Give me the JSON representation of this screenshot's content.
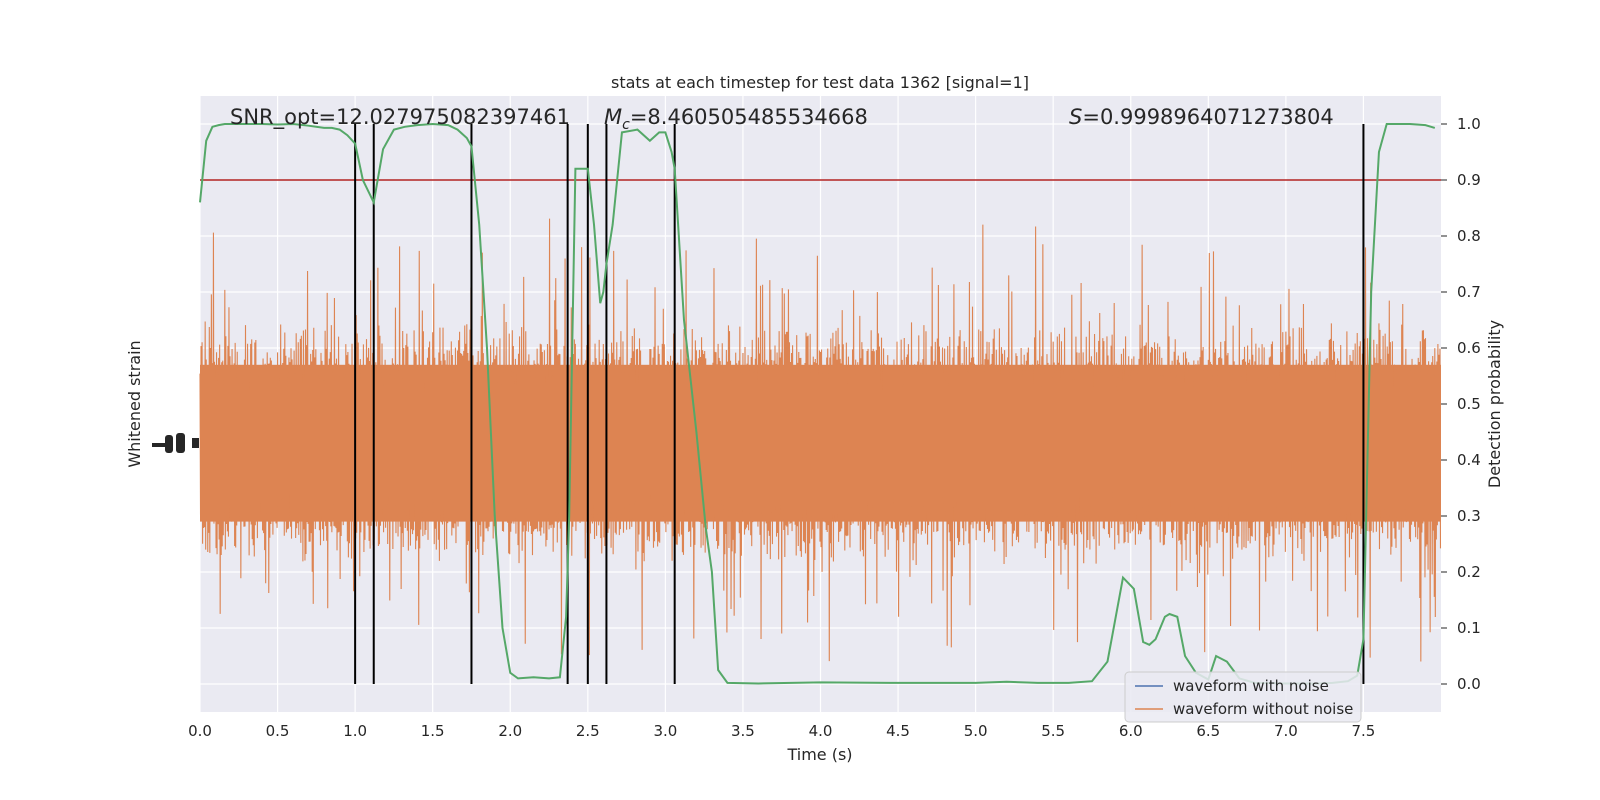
{
  "chart_data": {
    "type": "line",
    "title": "stats at each timestep for test data 1362 [signal=1]",
    "xlabel": "Time (s)",
    "ylabel_left": "Whitened strain",
    "ylabel_right": "Detection probability",
    "xlim": [
      0.0,
      8.0
    ],
    "ylim_right": [
      -0.05,
      1.05
    ],
    "x_ticks": [
      "0.0",
      "0.5",
      "1.0",
      "1.5",
      "2.0",
      "2.5",
      "3.0",
      "3.5",
      "4.0",
      "4.5",
      "5.0",
      "5.5",
      "6.0",
      "6.5",
      "7.0",
      "7.5"
    ],
    "x_tick_values": [
      0.0,
      0.5,
      1.0,
      1.5,
      2.0,
      2.5,
      3.0,
      3.5,
      4.0,
      4.5,
      5.0,
      5.5,
      6.0,
      6.5,
      7.0,
      7.5
    ],
    "y_right_ticks": [
      "0.0",
      "0.1",
      "0.2",
      "0.3",
      "0.4",
      "0.5",
      "0.6",
      "0.7",
      "0.8",
      "0.9",
      "1.0"
    ],
    "y_right_tick_values": [
      0.0,
      0.1,
      0.2,
      0.3,
      0.4,
      0.5,
      0.6,
      0.7,
      0.8,
      0.9,
      1.0
    ],
    "grid": true,
    "legend": {
      "placement": "lower-right",
      "entries": [
        {
          "label": "waveform with noise",
          "color": "#4c72b0"
        },
        {
          "label": "waveform without noise",
          "color": "#dd8452"
        }
      ]
    },
    "annotations": {
      "snr_text": "SNR_opt=12.027975082397461",
      "mc_symbol": "M",
      "mc_subscript": "c",
      "mc_value": "=8.460505485534668",
      "s_symbol": "S",
      "s_value": "=0.9998964071273804"
    },
    "threshold": {
      "value": 0.9,
      "color": "#b22222"
    },
    "vertical_lines": [
      1.0,
      1.12,
      1.75,
      2.37,
      2.5,
      2.62,
      3.06,
      7.5
    ],
    "noise_band": {
      "color": "#dd8452",
      "center": 0.43,
      "core_half_width": 0.14,
      "max_half_width": 0.43
    },
    "series": [
      {
        "name": "Detection probability",
        "color": "#55a868",
        "x": [
          0.0,
          0.04,
          0.08,
          0.12,
          0.16,
          0.2,
          0.3,
          0.4,
          0.5,
          0.6,
          0.7,
          0.8,
          0.85,
          0.9,
          0.95,
          1.0,
          1.05,
          1.12,
          1.18,
          1.25,
          1.32,
          1.4,
          1.5,
          1.6,
          1.66,
          1.72,
          1.75,
          1.8,
          1.85,
          1.9,
          1.95,
          2.0,
          2.05,
          2.15,
          2.25,
          2.32,
          2.36,
          2.38,
          2.42,
          2.5,
          2.54,
          2.58,
          2.6,
          2.62,
          2.66,
          2.72,
          2.82,
          2.9,
          2.96,
          3.0,
          3.04,
          3.06,
          3.12,
          3.2,
          3.26,
          3.3,
          3.34,
          3.4,
          3.6,
          4.0,
          4.5,
          5.0,
          5.2,
          5.4,
          5.6,
          5.75,
          5.85,
          5.95,
          6.02,
          6.08,
          6.12,
          6.16,
          6.22,
          6.25,
          6.3,
          6.35,
          6.42,
          6.5,
          6.55,
          6.62,
          6.7,
          6.8,
          7.0,
          7.2,
          7.3,
          7.4,
          7.46,
          7.5,
          7.55,
          7.6,
          7.65,
          7.7,
          7.8,
          7.9,
          7.96
        ],
        "y": [
          0.86,
          0.97,
          0.995,
          0.998,
          1.0,
          1.0,
          1.0,
          1.0,
          0.999,
          1.0,
          0.997,
          0.993,
          0.993,
          0.99,
          0.98,
          0.965,
          0.9,
          0.86,
          0.955,
          0.99,
          0.995,
          0.998,
          1.0,
          0.998,
          0.99,
          0.975,
          0.96,
          0.82,
          0.6,
          0.3,
          0.1,
          0.02,
          0.01,
          0.012,
          0.01,
          0.012,
          0.12,
          0.3,
          0.92,
          0.92,
          0.82,
          0.68,
          0.7,
          0.75,
          0.82,
          0.985,
          0.99,
          0.97,
          0.985,
          0.985,
          0.95,
          0.92,
          0.65,
          0.45,
          0.28,
          0.2,
          0.025,
          0.002,
          0.001,
          0.003,
          0.002,
          0.002,
          0.004,
          0.002,
          0.002,
          0.005,
          0.04,
          0.19,
          0.17,
          0.075,
          0.07,
          0.08,
          0.12,
          0.125,
          0.12,
          0.05,
          0.02,
          0.008,
          0.05,
          0.04,
          0.01,
          0.002,
          0.001,
          0.001,
          0.002,
          0.005,
          0.015,
          0.08,
          0.7,
          0.95,
          1.0,
          1.0,
          1.0,
          0.998,
          0.993
        ]
      }
    ]
  }
}
